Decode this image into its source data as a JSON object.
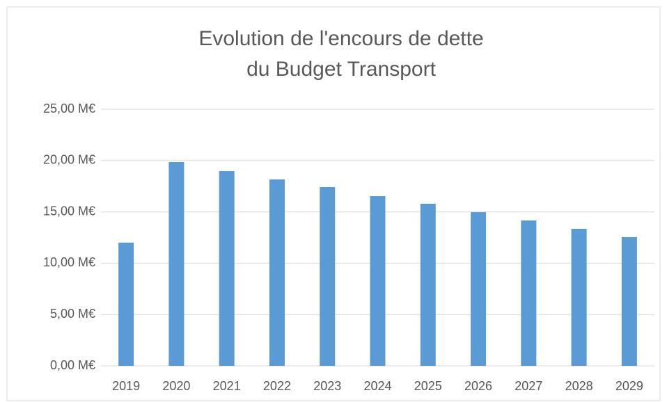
{
  "chart_data": {
    "type": "bar",
    "title": [
      "Evolution de l'encours de dette",
      "du Budget Transport"
    ],
    "categories": [
      "2019",
      "2020",
      "2021",
      "2022",
      "2023",
      "2024",
      "2025",
      "2026",
      "2027",
      "2028",
      "2029"
    ],
    "values": [
      12.0,
      19.85,
      18.97,
      18.16,
      17.41,
      16.53,
      15.79,
      14.97,
      14.16,
      13.35,
      12.53
    ],
    "color": "#5b9bd5",
    "ylim": [
      0,
      25
    ],
    "yticks": [
      {
        "value": 0,
        "label": "0,00 M€"
      },
      {
        "value": 5,
        "label": "5,00 M€"
      },
      {
        "value": 10,
        "label": "10,00 M€"
      },
      {
        "value": 15,
        "label": "15,00 M€"
      },
      {
        "value": 20,
        "label": "20,00 M€"
      },
      {
        "value": 25,
        "label": "25,00 M€"
      }
    ],
    "grid": true
  }
}
